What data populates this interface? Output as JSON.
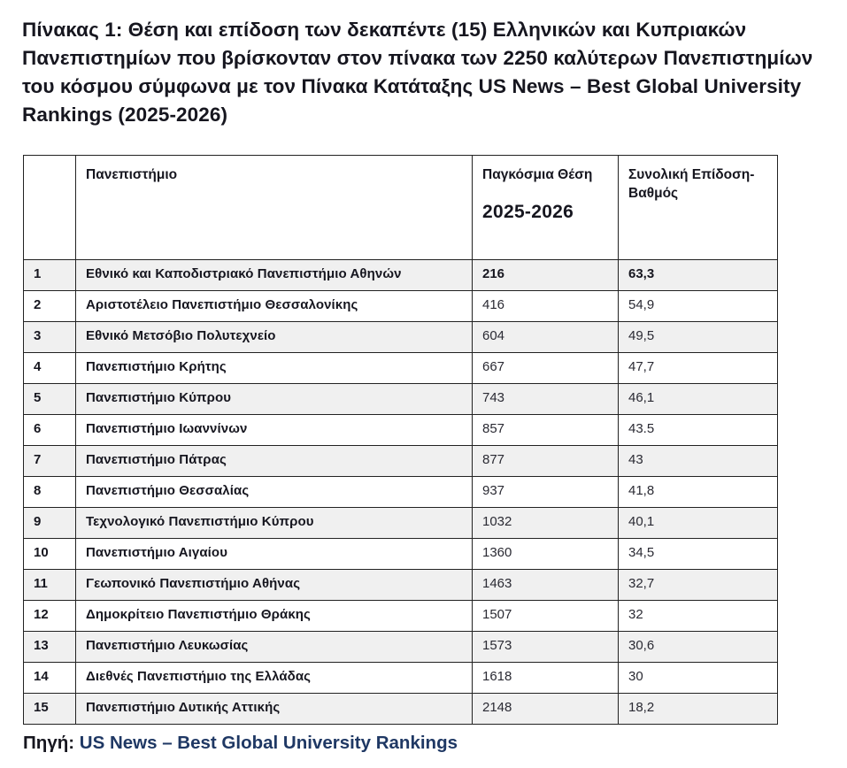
{
  "title": "Πίνακας 1: Θέση και επίδοση των δεκαπέντε (15) Ελληνικών και Κυπριακών Πανεπιστημίων που βρίσκονταν στον πίνακα των 2250 καλύτερων Πανεπιστημίων του κόσμου σύμφωνα με τον Πίνακα Κατάταξης  US News – Best Global University Rankings (2025-2026)",
  "table": {
    "headers": {
      "index": "",
      "university": "Πανεπιστήμιο",
      "position_label": "Παγκόσμια Θέση",
      "position_period": "2025-2026",
      "score_label": "Συνολική Επίδοση-Βαθμός"
    },
    "rows": [
      {
        "rank": "1",
        "university": "Εθνικό και Καποδιστριακό Πανεπιστήμιο Αθηνών",
        "position": "216",
        "score": "63,3",
        "emphasis": true
      },
      {
        "rank": "2",
        "university": "Αριστοτέλειο Πανεπιστήμιο Θεσσαλονίκης",
        "position": "416",
        "score": "54,9",
        "emphasis": false
      },
      {
        "rank": "3",
        "university": "Εθνικό Μετσόβιο Πολυτεχνείο",
        "position": "604",
        "score": "49,5",
        "emphasis": false
      },
      {
        "rank": "4",
        "university": "Πανεπιστήμιο Κρήτης",
        "position": "667",
        "score": "47,7",
        "emphasis": false
      },
      {
        "rank": "5",
        "university": "Πανεπιστήμιο Κύπρου",
        "position": "743",
        "score": "46,1",
        "emphasis": false
      },
      {
        "rank": "6",
        "university": "Πανεπιστήμιο Ιωαννίνων",
        "position": "857",
        "score": "43.5",
        "emphasis": false
      },
      {
        "rank": "7",
        "university": "Πανεπιστήμιο Πάτρας",
        "position": "877",
        "score": "43",
        "emphasis": false
      },
      {
        "rank": "8",
        "university": "Πανεπιστήμιο Θεσσαλίας",
        "position": "937",
        "score": "41,8",
        "emphasis": false
      },
      {
        "rank": "9",
        "university": "Τεχνολογικό Πανεπιστήμιο Κύπρου",
        "position": "1032",
        "score": "40,1",
        "emphasis": false
      },
      {
        "rank": "10",
        "university": "Πανεπιστήμιο  Αιγαίου",
        "position": "1360",
        "score": "34,5",
        "emphasis": false
      },
      {
        "rank": "11",
        "university": "Γεωπονικό Πανεπιστήμιο Αθήνας",
        "position": "1463",
        "score": "32,7",
        "emphasis": false
      },
      {
        "rank": "12",
        "university": "Δημοκρίτειο Πανεπιστήμιο Θράκης",
        "position": "1507",
        "score": "32",
        "emphasis": false
      },
      {
        "rank": "13",
        "university": "Πανεπιστήμιο Λευκωσίας",
        "position": "1573",
        "score": "30,6",
        "emphasis": false
      },
      {
        "rank": "14",
        "university": "Διεθνές Πανεπιστήμιο της Ελλάδας",
        "position": "1618",
        "score": "30",
        "emphasis": false
      },
      {
        "rank": "15",
        "university": "Πανεπιστήμιο Δυτικής Αττικής",
        "position": "2148",
        "score": "18,2",
        "emphasis": false
      }
    ]
  },
  "source": {
    "label": "Πηγή:",
    "link_text": "US News – Best Global University Rankings"
  },
  "colors": {
    "text": "#16161f",
    "link": "#1f3864",
    "row_alt": "#f0f0f0",
    "border": "#222222"
  }
}
